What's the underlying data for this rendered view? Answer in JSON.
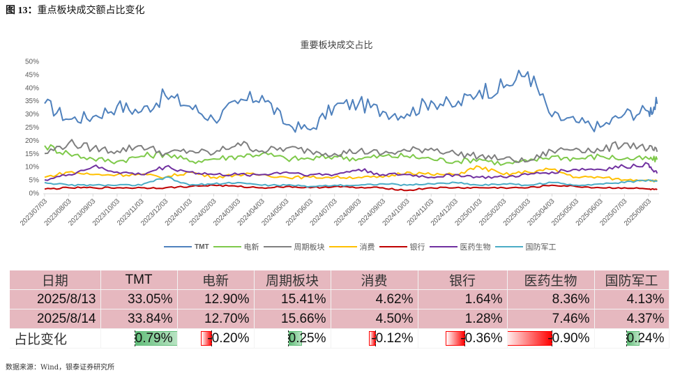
{
  "figure": {
    "label": "图 13：",
    "title": "重点板块成交额占比变化",
    "source": "数据来源：Wind，银泰证券研究所"
  },
  "chart_data": {
    "type": "line",
    "title": "重要板块成交占比",
    "xlabel": "",
    "ylabel": "",
    "ylim": [
      0,
      0.5
    ],
    "yticks": [
      "0%",
      "5%",
      "10%",
      "15%",
      "20%",
      "25%",
      "30%",
      "35%",
      "40%",
      "45%",
      "50%"
    ],
    "legend_position": "bottom",
    "grid": false,
    "x": [
      "2023/07/03",
      "2023/08/03",
      "2023/09/03",
      "2023/10/03",
      "2023/11/03",
      "2023/12/03",
      "2024/01/03",
      "2024/02/03",
      "2024/03/03",
      "2024/04/03",
      "2024/05/03",
      "2024/06/03",
      "2024/07/03",
      "2024/08/03",
      "2024/09/03",
      "2024/10/03",
      "2024/11/03",
      "2024/12/03",
      "2025/01/03",
      "2025/02/03",
      "2025/03/03",
      "2025/04/03",
      "2025/05/03",
      "2025/06/03",
      "2025/07/03",
      "2025/08/03",
      "2025/08/14"
    ],
    "series": [
      {
        "name": "TMT",
        "color": "#4f81bd",
        "values": [
          0.34,
          0.28,
          0.29,
          0.33,
          0.31,
          0.37,
          0.33,
          0.28,
          0.34,
          0.37,
          0.26,
          0.24,
          0.33,
          0.34,
          0.31,
          0.3,
          0.35,
          0.33,
          0.39,
          0.4,
          0.46,
          0.29,
          0.27,
          0.25,
          0.3,
          0.31,
          0.3384
        ]
      },
      {
        "name": "电新",
        "color": "#7ec94a",
        "values": [
          0.18,
          0.15,
          0.13,
          0.12,
          0.14,
          0.15,
          0.12,
          0.13,
          0.14,
          0.15,
          0.13,
          0.13,
          0.14,
          0.13,
          0.14,
          0.14,
          0.13,
          0.12,
          0.13,
          0.11,
          0.12,
          0.14,
          0.13,
          0.14,
          0.13,
          0.13,
          0.127
        ]
      },
      {
        "name": "周期板块",
        "color": "#7f7f7f",
        "values": [
          0.15,
          0.19,
          0.17,
          0.16,
          0.18,
          0.15,
          0.16,
          0.15,
          0.19,
          0.16,
          0.17,
          0.16,
          0.15,
          0.16,
          0.15,
          0.16,
          0.17,
          0.15,
          0.14,
          0.13,
          0.12,
          0.16,
          0.17,
          0.16,
          0.19,
          0.17,
          0.1566
        ]
      },
      {
        "name": "消费",
        "color": "#ffc000",
        "values": [
          0.06,
          0.08,
          0.07,
          0.07,
          0.07,
          0.06,
          0.08,
          0.06,
          0.07,
          0.07,
          0.06,
          0.06,
          0.06,
          0.06,
          0.06,
          0.08,
          0.07,
          0.07,
          0.1,
          0.07,
          0.08,
          0.09,
          0.06,
          0.06,
          0.05,
          0.05,
          0.045
        ]
      },
      {
        "name": "银行",
        "color": "#c00000",
        "values": [
          0.015,
          0.02,
          0.02,
          0.02,
          0.02,
          0.02,
          0.025,
          0.03,
          0.025,
          0.02,
          0.025,
          0.02,
          0.025,
          0.02,
          0.02,
          0.01,
          0.02,
          0.02,
          0.02,
          0.02,
          0.02,
          0.03,
          0.025,
          0.02,
          0.02,
          0.015,
          0.0128
        ]
      },
      {
        "name": "医药生物",
        "color": "#7030a0",
        "values": [
          0.05,
          0.07,
          0.1,
          0.08,
          0.07,
          0.1,
          0.08,
          0.07,
          0.07,
          0.07,
          0.08,
          0.07,
          0.07,
          0.09,
          0.07,
          0.07,
          0.06,
          0.07,
          0.06,
          0.06,
          0.07,
          0.08,
          0.09,
          0.09,
          0.1,
          0.11,
          0.0746
        ]
      },
      {
        "name": "国防军工",
        "color": "#4bacc6",
        "values": [
          0.04,
          0.03,
          0.03,
          0.03,
          0.03,
          0.06,
          0.03,
          0.035,
          0.04,
          0.03,
          0.03,
          0.025,
          0.03,
          0.03,
          0.035,
          0.03,
          0.035,
          0.04,
          0.03,
          0.035,
          0.03,
          0.04,
          0.03,
          0.035,
          0.04,
          0.05,
          0.0437
        ]
      }
    ]
  },
  "table": {
    "headers": [
      "日期",
      "TMT",
      "电新",
      "周期板块",
      "消费",
      "银行",
      "医药生物",
      "国防军工"
    ],
    "rows": [
      [
        "2025/8/13",
        "33.05%",
        "12.90%",
        "15.41%",
        "4.62%",
        "1.64%",
        "8.36%",
        "4.13%"
      ],
      [
        "2025/8/14",
        "33.84%",
        "12.70%",
        "15.66%",
        "4.50%",
        "1.28%",
        "7.46%",
        "4.37%"
      ]
    ],
    "change_label": "占比变化",
    "changes": [
      "0.79%",
      "-0.20%",
      "0.25%",
      "-0.12%",
      "-0.36%",
      "-0.90%",
      "0.24%"
    ],
    "change_values": [
      0.79,
      -0.2,
      0.25,
      -0.12,
      -0.36,
      -0.9,
      0.24
    ]
  }
}
